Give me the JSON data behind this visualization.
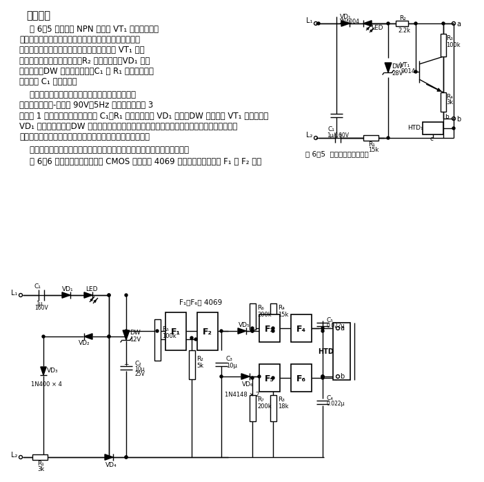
{
  "bg_color": "#ffffff",
  "lc": "#000000",
  "fig_width": 7.02,
  "fig_height": 6.99,
  "dpi": 100,
  "text_lines_p1": [
    "图 6－5 为用一只 NPN 晶体管 VT₁ 为核心实现的",
    "电子振铃电路。发声器件同时又是反馈器件，由一只带有",
    "反馈极且装有放音腔的压电蜂鸣器构成。它为 VT₁ 提供",
    "正反馈支路而形成自激振荡。R₂ 为隔离电阵。VD₁ 为整",
    "流二极管。DW 是鈗位二极管。C₁ 和 R₁ 起限流降压作",
    "用，同时 C₁ 用于隔直。"
  ],
  "text_lines_p2": [
    "当有外线电话呼入时，电话交换机就自动向该用户",
    "话机发送一个峰-峰値为 90V、5Hz 的铃声（并以断 3",
    "秒、续 1 秒的脉冲形式传送）。经 C₁、R₁ 降压后，再由 VD₁ 整流，DW 限压，为 VT₁ 提供电压。",
    "VD₁ 截止的半周内，DW 正向导通，电流流经用作振铃指示灯的发光二极管，从而使铃流的正、",
    "负两半周，分别为振铃电路的声、光两种指示方式提供电源。"
  ],
  "text_p3": "这种振铃器声音轻柔，类似鸟鸣，且电路简单，体积小巧，便于制作安装。",
  "text_p4": "图 6－6 所示电路是以一片通用 CMOS 集成电路 4069 为核心设计的。其中 F₁ 和 F₂ 构成",
  "fig5_cap": "图 6－5  电子振铃电路原理图",
  "title": "工作原理"
}
